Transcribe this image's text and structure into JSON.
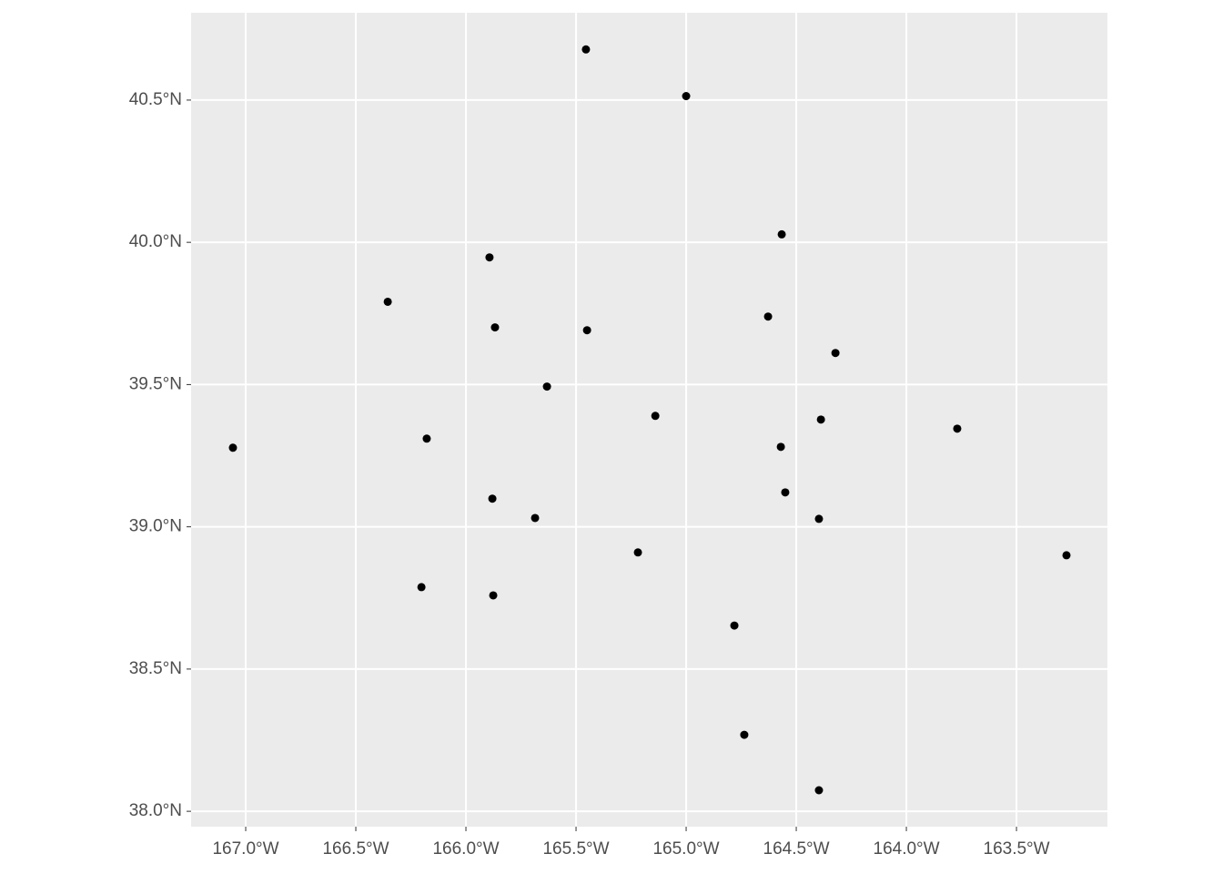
{
  "chart_data": {
    "type": "scatter",
    "x": [
      -165.455,
      -165.0,
      -164.566,
      -165.893,
      -166.355,
      -165.868,
      -165.45,
      -164.628,
      -164.322,
      -165.632,
      -165.14,
      -164.388,
      -163.769,
      -167.058,
      -166.178,
      -164.57,
      -164.55,
      -165.88,
      -165.686,
      -164.397,
      -165.219,
      -163.273,
      -166.202,
      -165.876,
      -164.781,
      -164.736,
      -164.397
    ],
    "y": [
      40.678,
      40.514,
      40.028,
      39.947,
      39.791,
      39.701,
      39.691,
      39.739,
      39.611,
      39.493,
      39.39,
      39.377,
      39.345,
      39.278,
      39.31,
      39.281,
      39.121,
      39.099,
      39.031,
      39.028,
      38.91,
      38.9,
      38.788,
      38.759,
      38.653,
      38.269,
      38.074
    ],
    "color": "#000000",
    "background": "#ebebeb",
    "grid": true,
    "xlim": [
      -167.248,
      -163.087
    ],
    "ylim": [
      37.946,
      40.807
    ],
    "xticks": [
      {
        "value": -167.0,
        "label": "167.0°W"
      },
      {
        "value": -166.5,
        "label": "166.5°W"
      },
      {
        "value": -166.0,
        "label": "166.0°W"
      },
      {
        "value": -165.5,
        "label": "165.5°W"
      },
      {
        "value": -165.0,
        "label": "165.0°W"
      },
      {
        "value": -164.5,
        "label": "164.5°W"
      },
      {
        "value": -164.0,
        "label": "164.0°W"
      },
      {
        "value": -163.5,
        "label": "163.5°W"
      }
    ],
    "yticks": [
      {
        "value": 38.0,
        "label": "38.0°N"
      },
      {
        "value": 38.5,
        "label": "38.5°N"
      },
      {
        "value": 39.0,
        "label": "39.0°N"
      },
      {
        "value": 39.5,
        "label": "39.5°N"
      },
      {
        "value": 40.0,
        "label": "40.0°N"
      },
      {
        "value": 40.5,
        "label": "40.5°N"
      }
    ]
  }
}
